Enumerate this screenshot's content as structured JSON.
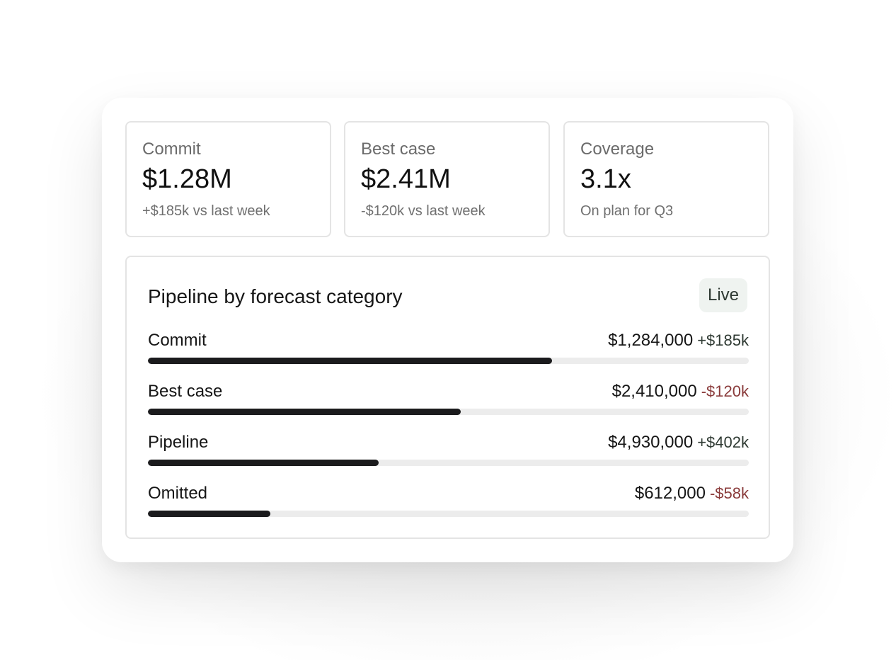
{
  "stats": [
    {
      "label": "Commit",
      "value": "$1.28M",
      "note": "+$185k vs last week"
    },
    {
      "label": "Best case",
      "value": "$2.41M",
      "note": "-$120k vs last week"
    },
    {
      "label": "Coverage",
      "value": "3.1x",
      "note": "On plan for Q3"
    }
  ],
  "pipeline": {
    "title": "Pipeline by forecast category",
    "badge": "Live",
    "rows": [
      {
        "label": "Commit",
        "amount": "$1,284,000",
        "delta": "+$185k",
        "trend": "up",
        "progress": 0.673
      },
      {
        "label": "Best case",
        "amount": "$2,410,000",
        "delta": "-$120k",
        "trend": "down",
        "progress": 0.521
      },
      {
        "label": "Pipeline",
        "amount": "$4,930,000",
        "delta": "+$402k",
        "trend": "up",
        "progress": 0.384
      },
      {
        "label": "Omitted",
        "amount": "$612,000",
        "delta": "-$58k",
        "trend": "down",
        "progress": 0.204
      }
    ]
  },
  "colors": {
    "delta_up": "#2f3a33",
    "delta_down": "#8a3b3b",
    "bar_fill": "#1b1b1d",
    "bar_track": "#ececec",
    "badge_bg": "#eff3f0"
  }
}
